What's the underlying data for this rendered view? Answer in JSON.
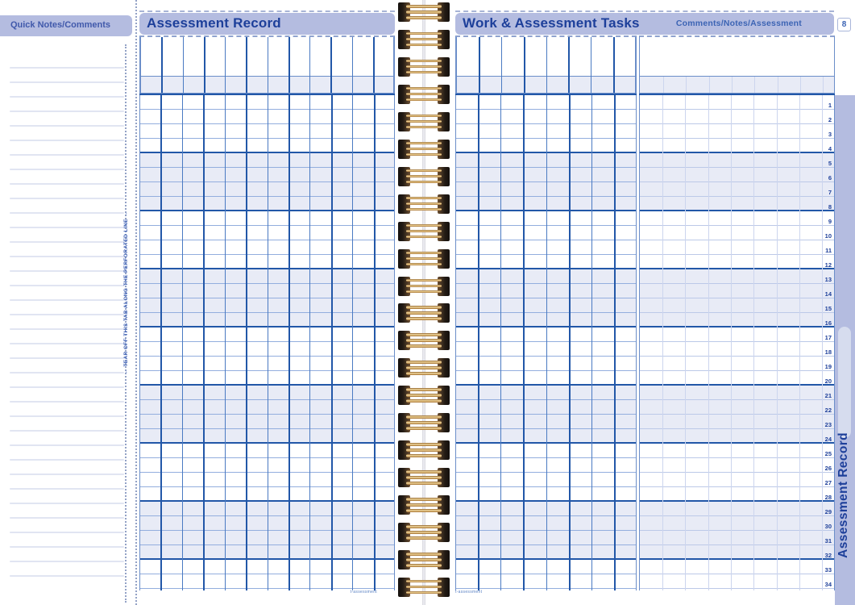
{
  "left_tab": {
    "header": "Quick Notes/Comments",
    "tear_text": "← TEAR OFF THIS TAB ALONG THE PERFORATED LINE →",
    "line_count": 36
  },
  "left_page": {
    "title": "Assessment Record",
    "columns": 12,
    "rows": 34,
    "group_size": 4,
    "footer": "t-assessment"
  },
  "right_page": {
    "title": "Work & Assessment Tasks",
    "subtitle": "Comments/Notes/Assessment",
    "page_number": "8",
    "task_columns": 8,
    "comment_subcolumns": 9,
    "rows": 34,
    "group_size": 4,
    "row_numbers": [
      1,
      2,
      3,
      4,
      5,
      6,
      7,
      8,
      9,
      10,
      11,
      12,
      13,
      14,
      15,
      16,
      17,
      18,
      19,
      20,
      21,
      22,
      23,
      24,
      25,
      26,
      27,
      28,
      29,
      30,
      31,
      32,
      33,
      34
    ],
    "footer": "t-assessment"
  },
  "right_tab": {
    "label": "Assessment Record"
  },
  "spiral": {
    "coil_count": 22
  },
  "colors": {
    "periwinkle": "#b4bce0",
    "navy": "#1d3f9a",
    "blue": "#3c64b4",
    "grid-dark": "#2257a8",
    "grid-mid": "#4a7ac2",
    "lavender": "#e8ebf6",
    "wire-gold": "#f4dca2"
  }
}
